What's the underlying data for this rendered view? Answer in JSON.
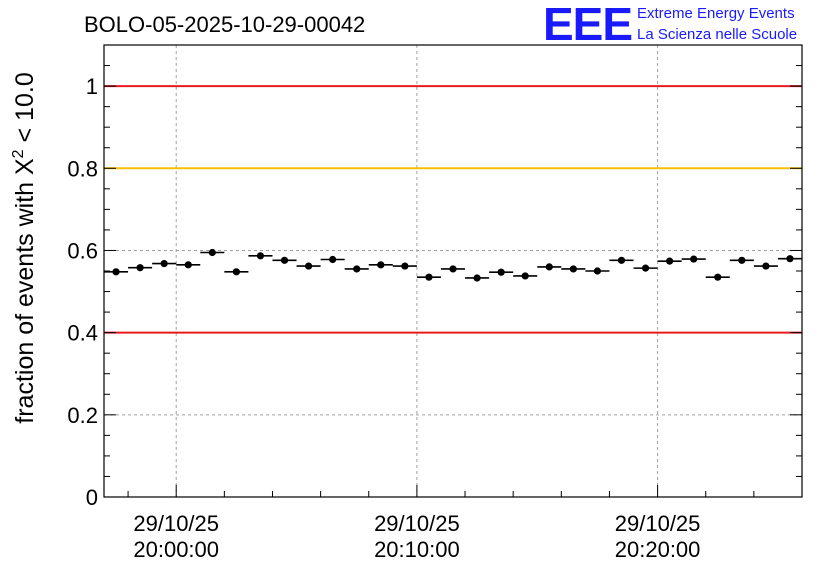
{
  "title": "BOLO-05-2025-10-29-00042",
  "logo": {
    "mark": "EEE",
    "line1": "Extreme Energy Events",
    "line2": "La Scienza nelle Scuole",
    "color": "#1a1aff"
  },
  "chart_data": {
    "type": "scatter",
    "title": "BOLO-05-2025-10-29-00042",
    "xlabel": "",
    "ylabel_main": "fraction of events with X",
    "ylabel_sup": "2",
    "ylabel_tail": " < 10.0",
    "ylim": [
      0,
      1.1
    ],
    "xlim_minutes": [
      -3,
      26
    ],
    "grid": true,
    "y_ticks": [
      {
        "value": 0,
        "label": "0"
      },
      {
        "value": 0.2,
        "label": "0.2"
      },
      {
        "value": 0.4,
        "label": "0.4"
      },
      {
        "value": 0.6,
        "label": "0.6"
      },
      {
        "value": 0.8,
        "label": "0.8"
      },
      {
        "value": 1.0,
        "label": "1"
      }
    ],
    "x_ticks": [
      {
        "minute": 0,
        "date": "29/10/25",
        "time": "20:00:00"
      },
      {
        "minute": 10,
        "date": "29/10/25",
        "time": "20:10:00"
      },
      {
        "minute": 20,
        "date": "29/10/25",
        "time": "20:20:00"
      }
    ],
    "reference_lines": [
      {
        "y": 1.0,
        "color": "#e8191f",
        "name": "upper-limit"
      },
      {
        "y": 0.8,
        "color": "#f7c000",
        "name": "warning-level"
      },
      {
        "y": 0.4,
        "color": "#e8191f",
        "name": "lower-limit"
      }
    ],
    "bin_width_minutes": 1,
    "series": [
      {
        "name": "fraction",
        "x_minutes": [
          -2.5,
          -1.5,
          -0.5,
          0.5,
          1.5,
          2.5,
          3.5,
          4.5,
          5.5,
          6.5,
          7.5,
          8.5,
          9.5,
          10.5,
          11.5,
          12.5,
          13.5,
          14.5,
          15.5,
          16.5,
          17.5,
          18.5,
          19.5,
          20.5,
          21.5,
          22.5,
          23.5,
          24.5,
          25.5
        ],
        "values": [
          0.548,
          0.558,
          0.568,
          0.565,
          0.595,
          0.548,
          0.587,
          0.576,
          0.562,
          0.578,
          0.555,
          0.565,
          0.562,
          0.535,
          0.555,
          0.533,
          0.547,
          0.538,
          0.56,
          0.555,
          0.55,
          0.576,
          0.557,
          0.574,
          0.579,
          0.535,
          0.576,
          0.562,
          0.58
        ],
        "error": 0.008
      }
    ]
  }
}
